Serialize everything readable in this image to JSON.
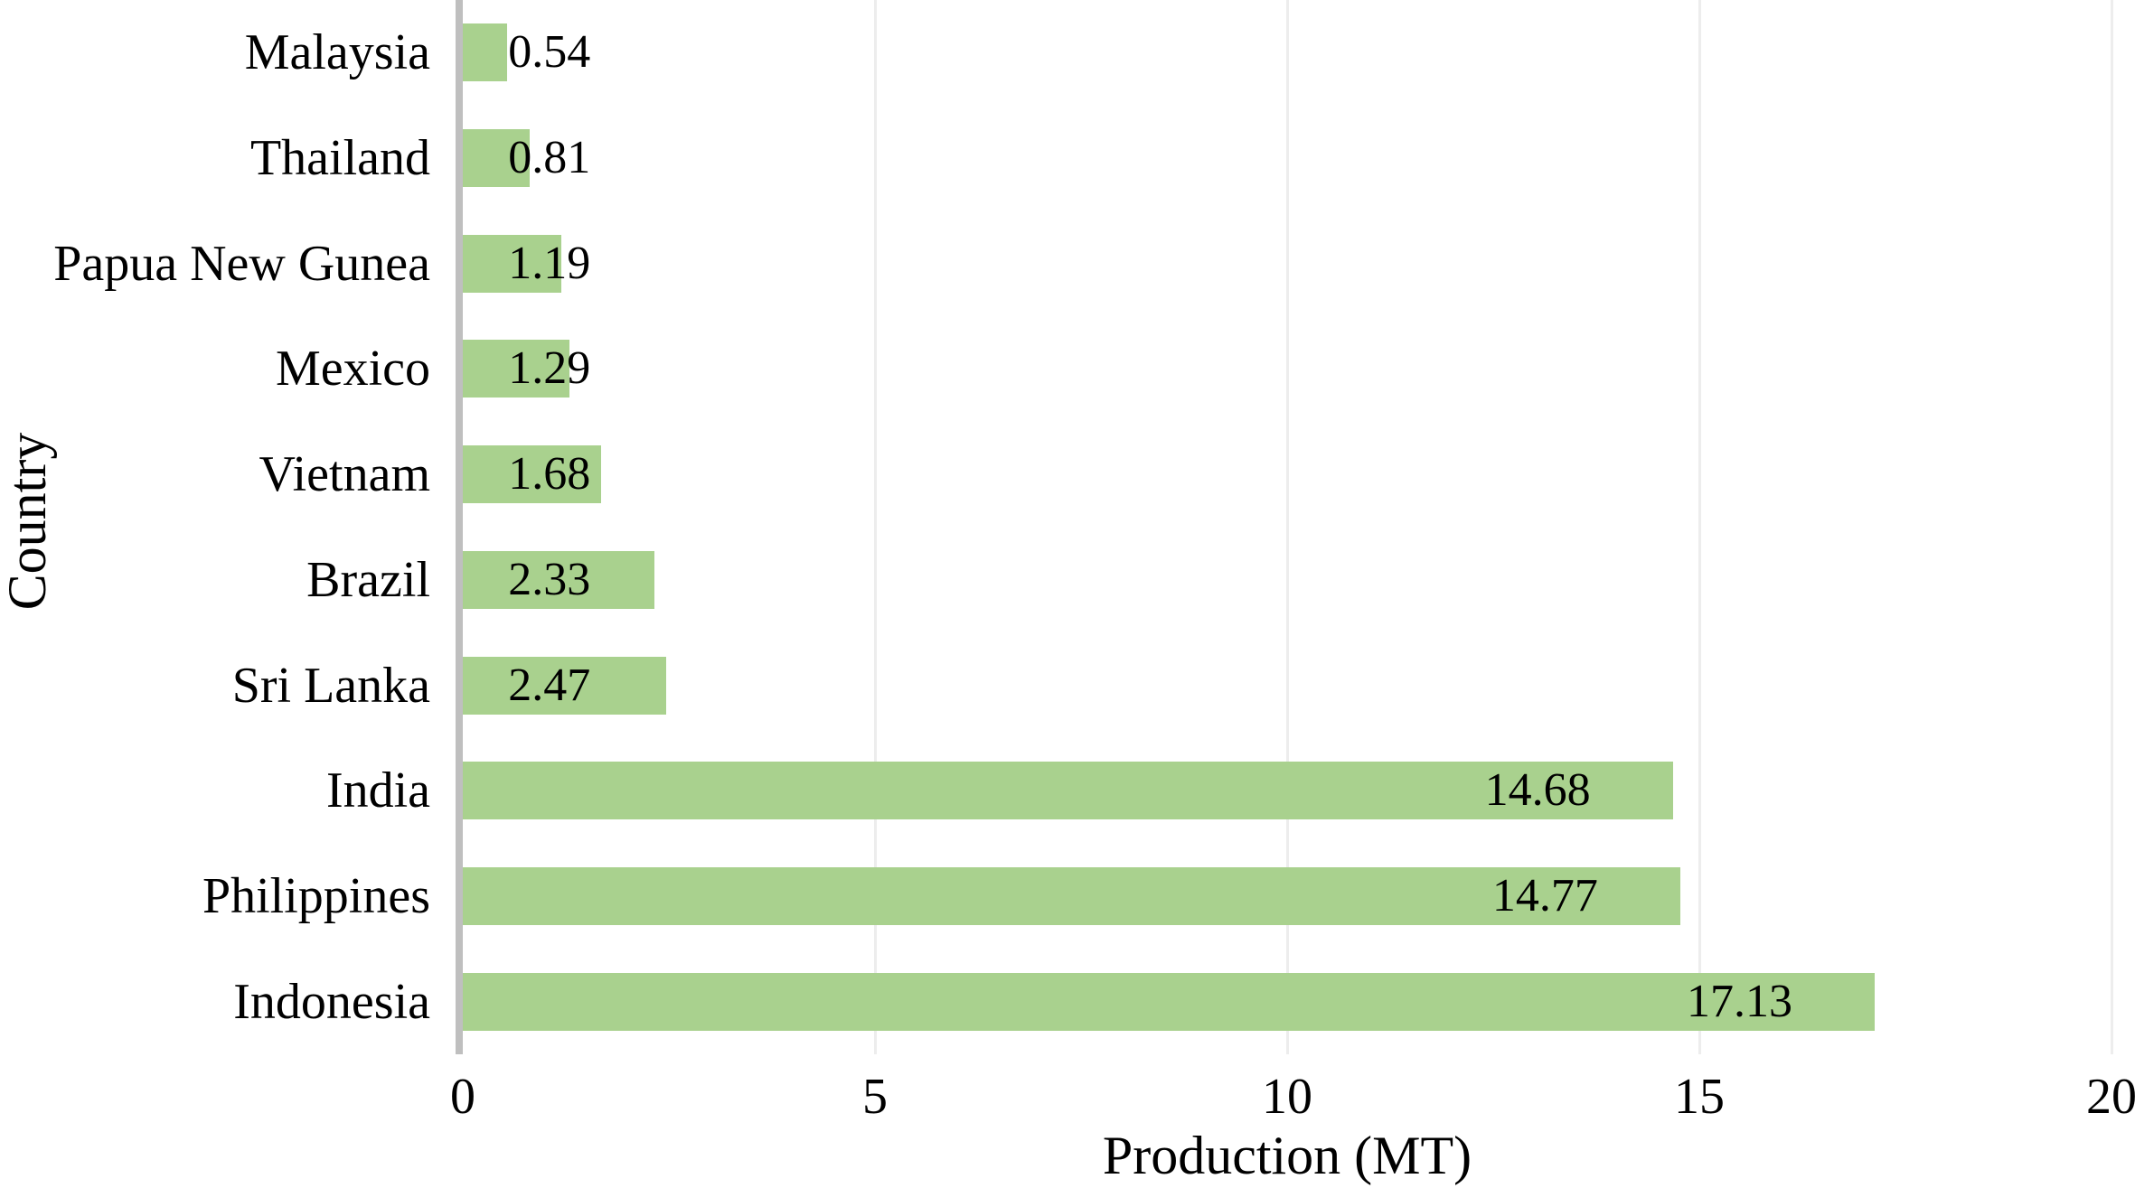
{
  "chart_data": {
    "type": "bar",
    "orientation": "horizontal",
    "title": "",
    "xlabel": "Production (MT)",
    "ylabel": "Country",
    "xlim": [
      0,
      20
    ],
    "x_ticks": [
      0,
      5,
      10,
      15,
      20
    ],
    "x_tick_labels": [
      "0",
      "5",
      "10",
      "15",
      "20"
    ],
    "grid": "vertical gridlines at each x tick, drawn behind bars",
    "legend": "none",
    "categories": [
      "Malaysia",
      "Thailand",
      "Papua New Gunea",
      "Mexico",
      "Vietnam",
      "Brazil",
      "Sri Lanka",
      "India",
      "Philippines",
      "Indonesia"
    ],
    "values": [
      0.54,
      0.81,
      1.19,
      1.29,
      1.68,
      2.33,
      2.47,
      14.68,
      14.77,
      17.13
    ],
    "value_labels": [
      "0.54",
      "0.81",
      "1.19",
      "1.29",
      "1.68",
      "2.33",
      "2.47",
      "14.68",
      "14.77",
      "17.13"
    ],
    "colors": {
      "bar_fill": "#A9D18E",
      "axis_line": "#BFBFBF",
      "gridline": "#EDEDED",
      "text": "#000000",
      "background": "#FFFFFF"
    }
  }
}
